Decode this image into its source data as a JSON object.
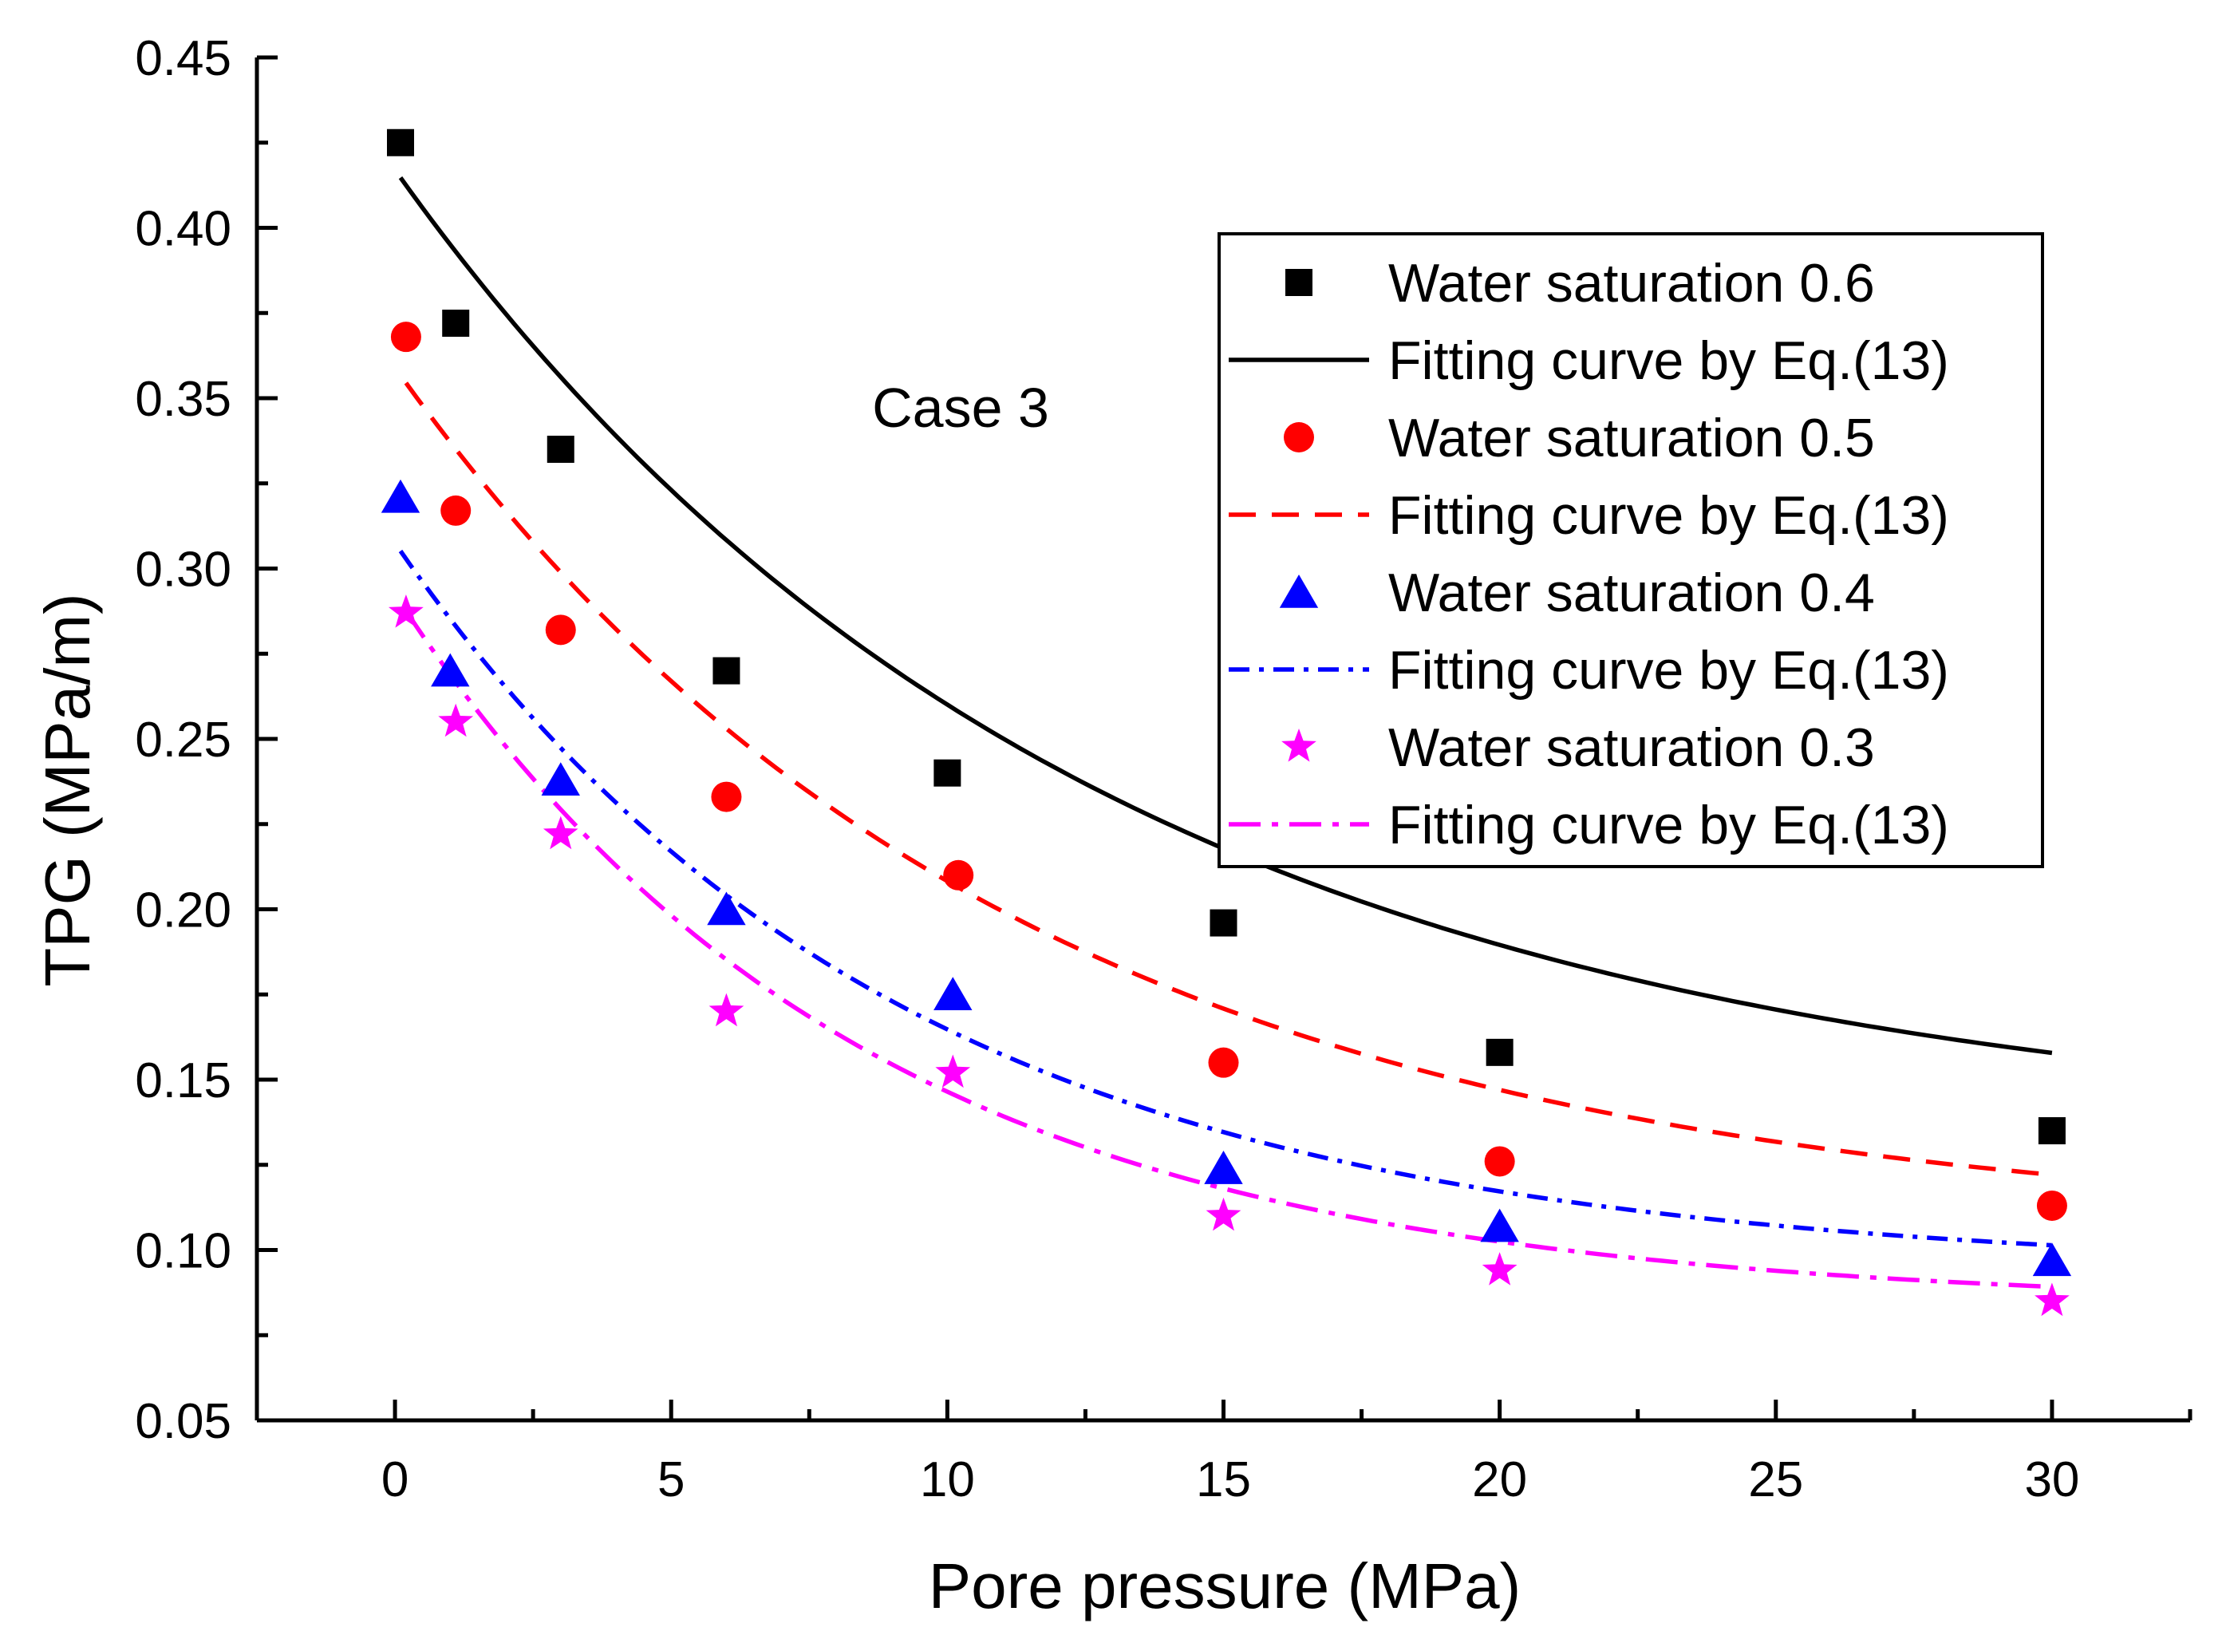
{
  "chart_data": {
    "type": "scatter",
    "title": "",
    "annotation": "Case 3",
    "xlabel": "Pore pressure (MPa)",
    "ylabel": "TPG (MPa/m)",
    "xlim": [
      -2.5,
      32.5
    ],
    "ylim": [
      0.05,
      0.45
    ],
    "xticks": [
      0,
      5,
      10,
      15,
      20,
      25,
      30
    ],
    "xtick_labels": [
      "0",
      "5",
      "10",
      "15",
      "20",
      "25",
      "30"
    ],
    "yticks": [
      0.05,
      0.1,
      0.15,
      0.2,
      0.25,
      0.3,
      0.35,
      0.4,
      0.45
    ],
    "ytick_labels": [
      "0.05",
      "0.10",
      "0.15",
      "0.20",
      "0.25",
      "0.30",
      "0.35",
      "0.40",
      "0.45"
    ],
    "grid": false,
    "legend_position": "top-right",
    "series": [
      {
        "name": "Water saturation 0.6",
        "kind": "markers",
        "marker": "square",
        "color": "#000000",
        "x": [
          0.1,
          1.1,
          3.0,
          6.0,
          10.0,
          15.0,
          20.0,
          30.0
        ],
        "y": [
          0.425,
          0.372,
          0.335,
          0.27,
          0.24,
          0.196,
          0.158,
          0.135
        ]
      },
      {
        "name": "Fitting curve by Eq.(13)",
        "kind": "curve",
        "dash": "solid",
        "color": "#000000",
        "fit": {
          "A": 0.285,
          "c": 0.132,
          "k": 0.08,
          "x_start": 0.1,
          "x_end": 30.0
        }
      },
      {
        "name": "Water saturation 0.5",
        "kind": "markers",
        "marker": "circle",
        "color": "#ff0000",
        "x": [
          0.2,
          1.1,
          3.0,
          6.0,
          10.2,
          15.0,
          20.0,
          30.0
        ],
        "y": [
          0.368,
          0.317,
          0.282,
          0.233,
          0.21,
          0.155,
          0.126,
          0.113
        ]
      },
      {
        "name": "Fitting curve by Eq.(13)",
        "kind": "curve",
        "dash": "dash",
        "color": "#ff0000",
        "fit": {
          "A": 0.254,
          "c": 0.105,
          "k": 0.09,
          "x_start": 0.2,
          "x_end": 30.0
        }
      },
      {
        "name": "Water saturation 0.4",
        "kind": "markers",
        "marker": "triangle",
        "color": "#0000ff",
        "x": [
          0.1,
          1.0,
          3.0,
          6.0,
          10.1,
          15.0,
          20.0,
          30.0
        ],
        "y": [
          0.321,
          0.27,
          0.238,
          0.2,
          0.175,
          0.124,
          0.107,
          0.097
        ]
      },
      {
        "name": "Fitting curve by Eq.(13)",
        "kind": "curve",
        "dash": "dashdot",
        "color": "#0000ff",
        "fit": {
          "A": 0.214,
          "c": 0.0935,
          "k": 0.11,
          "x_start": 0.1,
          "x_end": 30.0
        }
      },
      {
        "name": "Water saturation 0.3",
        "kind": "markers",
        "marker": "star",
        "color": "#ff00ff",
        "x": [
          0.2,
          1.1,
          3.0,
          6.0,
          10.1,
          15.0,
          20.0,
          30.0
        ],
        "y": [
          0.287,
          0.255,
          0.222,
          0.17,
          0.152,
          0.11,
          0.094,
          0.085
        ]
      },
      {
        "name": "Fitting curve by Eq.(13)",
        "kind": "curve",
        "dash": "dashdotdot",
        "color": "#ff00ff",
        "fit": {
          "A": 0.209,
          "c": 0.0835,
          "k": 0.12,
          "x_start": 0.2,
          "x_end": 30.0
        }
      }
    ]
  }
}
